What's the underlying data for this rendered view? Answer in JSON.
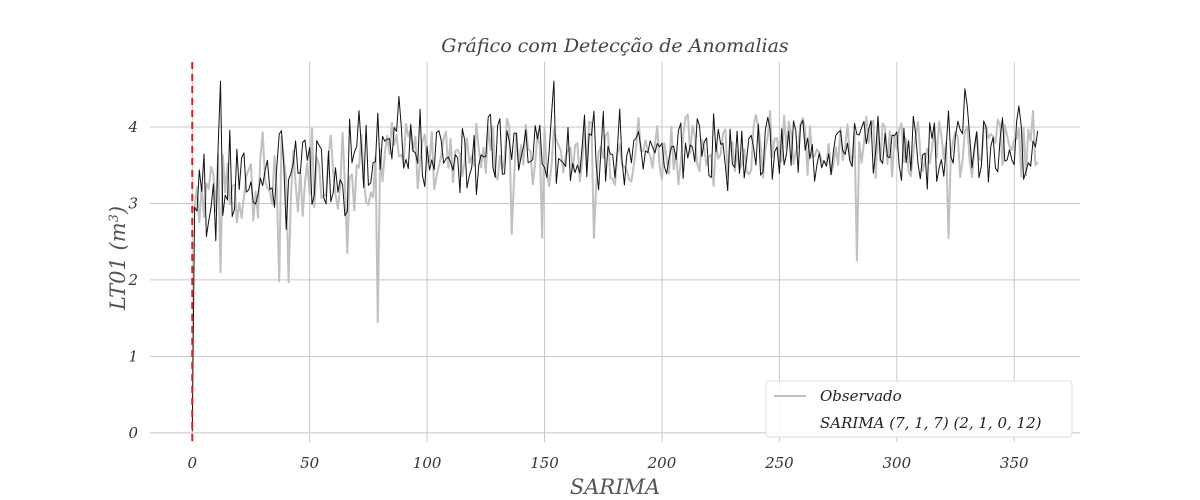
{
  "chart_data": {
    "type": "line",
    "title": "Gráfico com Detecção de Anomalias",
    "xlabel": "SARIMA",
    "ylabel_main": "LT01 (m",
    "ylabel_sup": "3",
    "ylabel_close": ")",
    "xlim": [
      -18,
      378
    ],
    "ylim": [
      -0.12,
      4.85
    ],
    "xticks": [
      0,
      50,
      100,
      150,
      200,
      250,
      300,
      350
    ],
    "yticks": [
      0,
      1,
      2,
      3,
      4
    ],
    "grid": true,
    "legend_position": "bottom-right",
    "vertical_marker": {
      "x": 0,
      "color": "#e41a1c"
    },
    "series": [
      {
        "name": "Observado",
        "color": "#c0c0c0",
        "generator": "observed"
      },
      {
        "name": "SARIMA (7, 1, 7) (2, 1, 0, 12)",
        "color": "#111111",
        "generator": "model"
      }
    ],
    "anomalies": [
      {
        "x": 12,
        "y": 2.1
      },
      {
        "x": 37,
        "y": 1.98
      },
      {
        "x": 41,
        "y": 1.97
      },
      {
        "x": 66,
        "y": 2.35
      },
      {
        "x": 79,
        "y": 1.45
      },
      {
        "x": 136,
        "y": 2.6
      },
      {
        "x": 149,
        "y": 2.55
      },
      {
        "x": 171,
        "y": 2.55
      },
      {
        "x": 283,
        "y": 2.25
      },
      {
        "x": 322,
        "y": 2.55
      }
    ],
    "observed_peaks": [
      {
        "x": 12,
        "y": 4.6
      },
      {
        "x": 67,
        "y": 4.1
      },
      {
        "x": 88,
        "y": 4.4
      },
      {
        "x": 154,
        "y": 4.6
      },
      {
        "x": 329,
        "y": 4.5
      }
    ]
  }
}
